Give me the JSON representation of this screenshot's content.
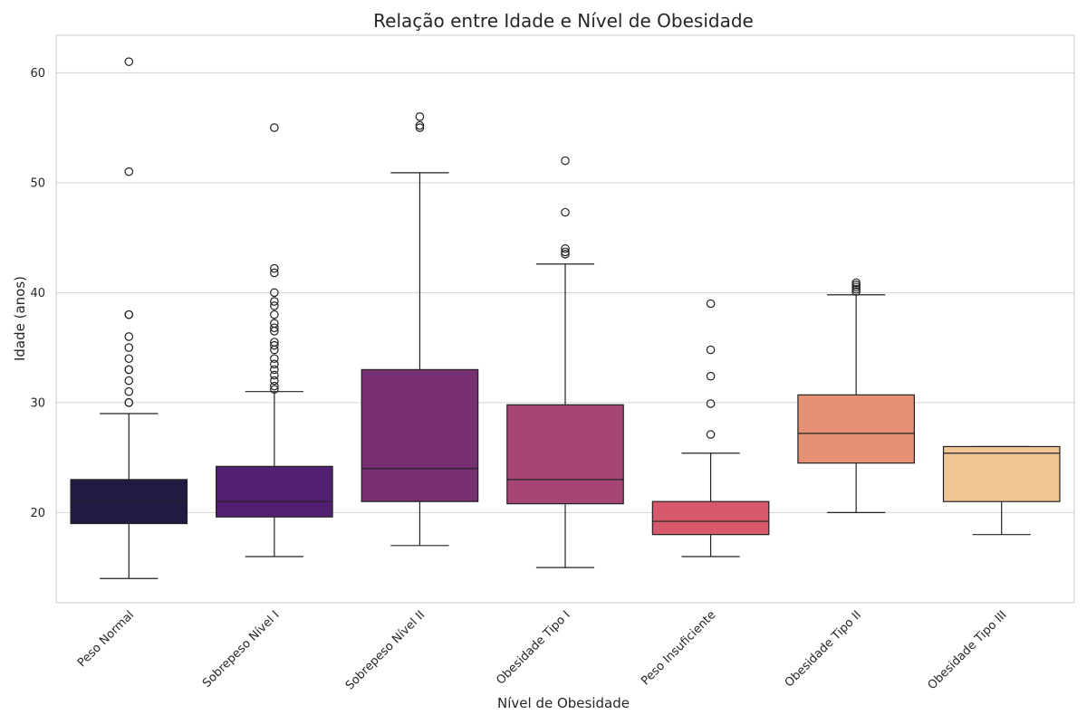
{
  "chart_data": {
    "type": "boxplot",
    "title": "Relação entre Idade e Nível de Obesidade",
    "xlabel": "Nível de Obesidade",
    "ylabel": "Idade (anos)",
    "ylim": [
      11.8,
      63.4
    ],
    "yticks": [
      20,
      30,
      40,
      50,
      60
    ],
    "grid": "horizontal",
    "categories": [
      "Peso Normal",
      "Sobrepeso Nível I",
      "Sobrepeso Nível II",
      "Obesidade Tipo I",
      "Peso Insuficiente",
      "Obesidade Tipo II",
      "Obesidade Tipo III"
    ],
    "boxes": [
      {
        "category": "Peso Normal",
        "color": "#221a43",
        "whisker_low": 14,
        "q1": 19,
        "median": 21,
        "q3": 23,
        "whisker_high": 29,
        "outliers": [
          30,
          30,
          31,
          32,
          33,
          33,
          34,
          35,
          36,
          38,
          38,
          51,
          61
        ]
      },
      {
        "category": "Sobrepeso Nível I",
        "color": "#521f72",
        "whisker_low": 16,
        "q1": 19.6,
        "median": 21,
        "q3": 24.2,
        "whisker_high": 31,
        "outliers": [
          31.2,
          31.5,
          32,
          32.5,
          33,
          33.5,
          34,
          34.8,
          35.2,
          35.5,
          36.5,
          36.8,
          37.2,
          38,
          38.8,
          39.2,
          40,
          41.8,
          42.2,
          55
        ]
      },
      {
        "category": "Sobrepeso Nível II",
        "color": "#772f74",
        "whisker_low": 17,
        "q1": 21,
        "median": 24,
        "q3": 33,
        "whisker_high": 50.9,
        "outliers": [
          55,
          55.2,
          56
        ]
      },
      {
        "category": "Obesidade Tipo I",
        "color": "#a54676",
        "whisker_low": 15,
        "q1": 20.8,
        "median": 23,
        "q3": 29.8,
        "whisker_high": 42.6,
        "outliers": [
          43.5,
          43.7,
          44,
          47.3,
          52
        ]
      },
      {
        "category": "Peso Insuficiente",
        "color": "#d7596c",
        "whisker_low": 16,
        "q1": 18,
        "median": 19.2,
        "q3": 21,
        "whisker_high": 25.4,
        "outliers": [
          27.1,
          29.9,
          32.4,
          34.8,
          39
        ]
      },
      {
        "category": "Obesidade Tipo II",
        "color": "#e79174",
        "whisker_low": 20,
        "q1": 24.5,
        "median": 27.2,
        "q3": 30.7,
        "whisker_high": 39.8,
        "outliers": [
          40.1,
          40.3,
          40.5,
          40.7,
          40.9
        ]
      },
      {
        "category": "Obesidade Tipo III",
        "color": "#f0c594",
        "whisker_low": 18,
        "q1": 21,
        "median": 25.4,
        "q3": 26,
        "whisker_high": 26,
        "outliers": []
      }
    ]
  }
}
